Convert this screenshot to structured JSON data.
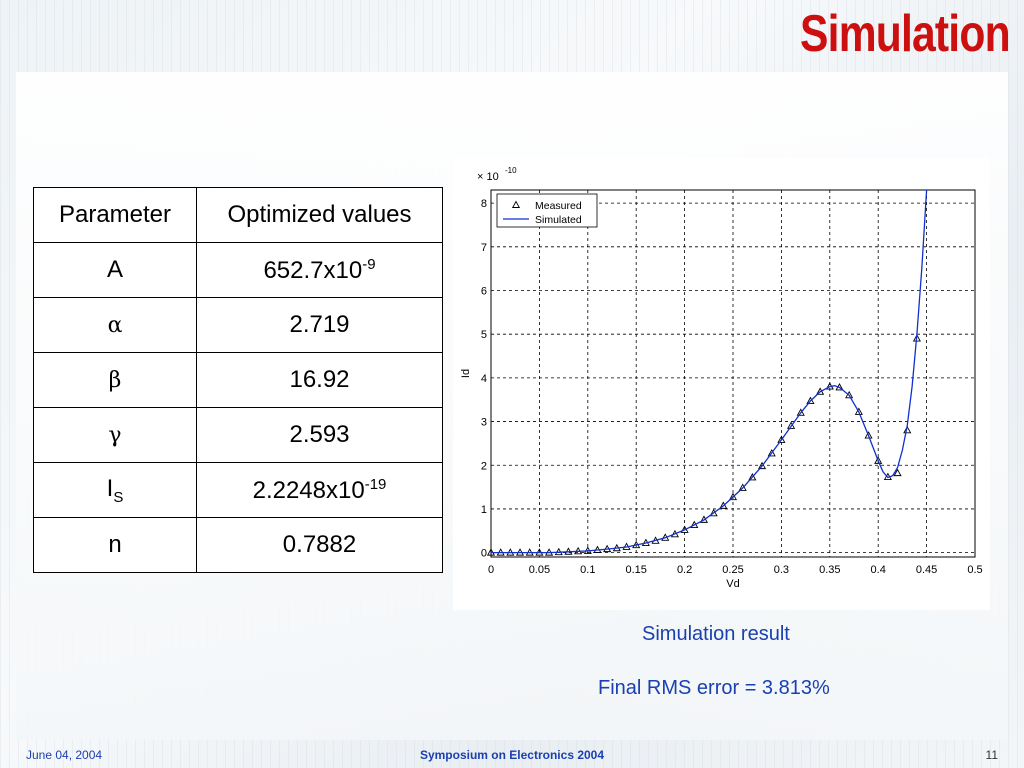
{
  "slide": {
    "title": "Simulation",
    "footer_date": "June 04, 2004",
    "footer_center": "Symposium on Electronics 2004",
    "page_number": "11"
  },
  "table": {
    "headers": [
      "Parameter",
      "Optimized values"
    ],
    "rows": [
      {
        "param": "A",
        "value": "652.7x10",
        "value_exp": "-9"
      },
      {
        "param": "α",
        "value": "2.719"
      },
      {
        "param": "β",
        "value": "16.92"
      },
      {
        "param": "γ",
        "value": "2.593"
      },
      {
        "param": "I",
        "param_sub": "S",
        "value": "2.2248x10",
        "value_exp": "-19"
      },
      {
        "param": "n",
        "value": "0.7882"
      }
    ]
  },
  "captions": {
    "result": "Simulation result",
    "rms": "Final RMS error = 3.813%"
  },
  "chart_data": {
    "type": "line",
    "xlabel": "Vd",
    "ylabel": "Id",
    "y_multiplier": "× 10",
    "y_multiplier_exp": "-10",
    "xlim": [
      0,
      0.5
    ],
    "ylim": [
      -0.1,
      8.3
    ],
    "xticks": [
      "0",
      "0.05",
      "0.1",
      "0.15",
      "0.2",
      "0.25",
      "0.3",
      "0.35",
      "0.4",
      "0.45",
      "0.5"
    ],
    "yticks": [
      "0",
      "1",
      "2",
      "3",
      "4",
      "5",
      "6",
      "7",
      "8"
    ],
    "grid": true,
    "legend": "top-left",
    "series": [
      {
        "name": "Measured",
        "marker": "triangle",
        "color": "#000000",
        "x": [
          0,
          0.01,
          0.02,
          0.03,
          0.04,
          0.05,
          0.06,
          0.07,
          0.08,
          0.09,
          0.1,
          0.11,
          0.12,
          0.13,
          0.14,
          0.15,
          0.16,
          0.17,
          0.18,
          0.19,
          0.2,
          0.21,
          0.22,
          0.23,
          0.24,
          0.25,
          0.26,
          0.27,
          0.28,
          0.29,
          0.3,
          0.31,
          0.32,
          0.33,
          0.34,
          0.35,
          0.36,
          0.37,
          0.38,
          0.39,
          0.4,
          0.41,
          0.42,
          0.43,
          0.44
        ],
        "y": [
          0,
          0,
          0,
          0,
          0,
          0,
          0,
          0.01,
          0.02,
          0.03,
          0.04,
          0.06,
          0.08,
          0.1,
          0.13,
          0.17,
          0.22,
          0.27,
          0.34,
          0.42,
          0.52,
          0.63,
          0.75,
          0.9,
          1.07,
          1.27,
          1.48,
          1.72,
          1.98,
          2.27,
          2.58,
          2.9,
          3.2,
          3.47,
          3.68,
          3.8,
          3.78,
          3.6,
          3.22,
          2.68,
          2.1,
          1.73,
          1.82,
          2.8,
          4.9
        ]
      },
      {
        "name": "Simulated",
        "marker": "none",
        "color": "#1030d0",
        "x": [
          0,
          0.02,
          0.04,
          0.06,
          0.08,
          0.1,
          0.12,
          0.14,
          0.16,
          0.18,
          0.2,
          0.22,
          0.24,
          0.26,
          0.28,
          0.3,
          0.32,
          0.33,
          0.34,
          0.35,
          0.355,
          0.36,
          0.37,
          0.38,
          0.39,
          0.4,
          0.405,
          0.41,
          0.415,
          0.42,
          0.425,
          0.43,
          0.435,
          0.44,
          0.445,
          0.45
        ],
        "y": [
          0,
          0,
          0,
          0,
          0.02,
          0.04,
          0.08,
          0.13,
          0.22,
          0.34,
          0.52,
          0.75,
          1.07,
          1.48,
          1.98,
          2.58,
          3.2,
          3.47,
          3.68,
          3.8,
          3.82,
          3.78,
          3.6,
          3.22,
          2.68,
          2.1,
          1.85,
          1.72,
          1.76,
          1.95,
          2.35,
          2.9,
          3.8,
          5.0,
          6.5,
          8.3
        ]
      }
    ]
  }
}
